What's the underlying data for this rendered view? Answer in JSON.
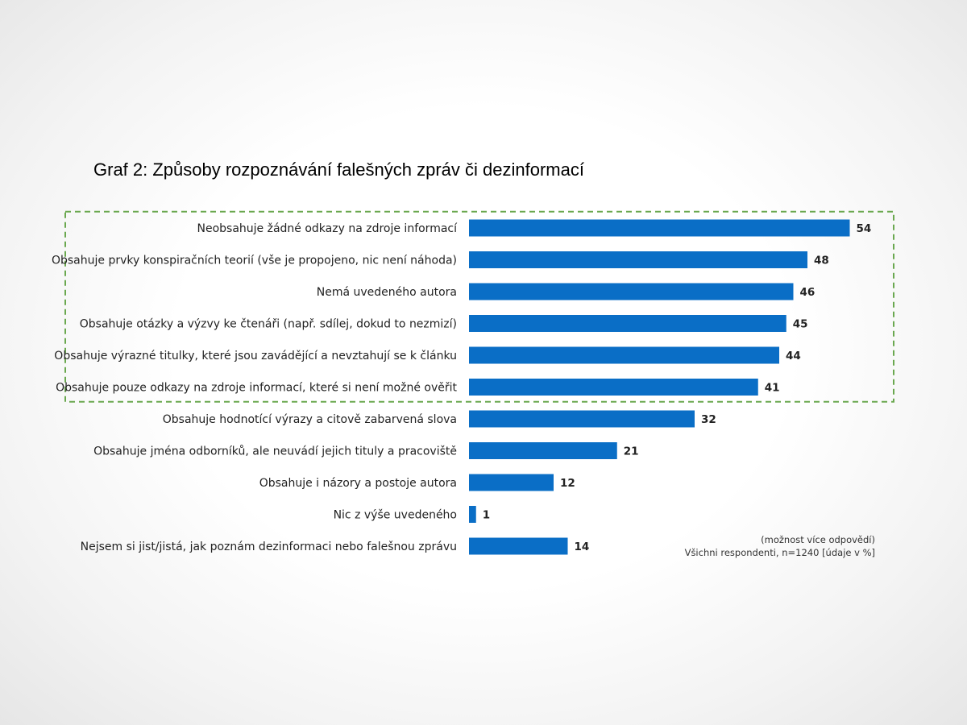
{
  "title": "Graf 2: Způsoby rozpoznávání falešných zpráv či dezinformací",
  "note_line1": "(možnost více odpovědí)",
  "note_line2": "Všichni respondenti, n=1240 [údaje v %]",
  "colors": {
    "bar": "#0a6ec6",
    "highlight_border": "#6aa84f"
  },
  "chart_data": {
    "type": "bar",
    "orientation": "horizontal",
    "title": "Graf 2: Způsoby rozpoznávání falešných zpráv či dezinformací",
    "categories": [
      "Neobsahuje žádné odkazy na zdroje informací",
      "Obsahuje prvky konspiračních teorií (vše je propojeno, nic není náhoda)",
      "Nemá uvedeného autora",
      "Obsahuje otázky a výzvy ke čtenáři (např. sdílej, dokud to nezmizí)",
      "Obsahuje výrazné titulky, které jsou zavádějící a nevztahují se k článku",
      "Obsahuje pouze odkazy na zdroje informací, které si není možné ověřit",
      "Obsahuje hodnotící výrazy a citově zabarvená slova",
      "Obsahuje jména odborníků, ale neuvádí jejich tituly a pracoviště",
      "Obsahuje i názory a postoje autora",
      "Nic z výše uvedeného",
      "Nejsem si jist/jistá, jak poznám dezinformaci nebo falešnou zprávu"
    ],
    "values": [
      54,
      48,
      46,
      45,
      44,
      41,
      32,
      21,
      12,
      1,
      14
    ],
    "data_labels": [
      "54",
      "48",
      "46",
      "45",
      "44",
      "41",
      "32",
      "21",
      "12",
      "1",
      "14"
    ],
    "highlighted_categories": 6,
    "xlim": [
      0,
      60
    ],
    "grid": false,
    "legend": "none"
  }
}
